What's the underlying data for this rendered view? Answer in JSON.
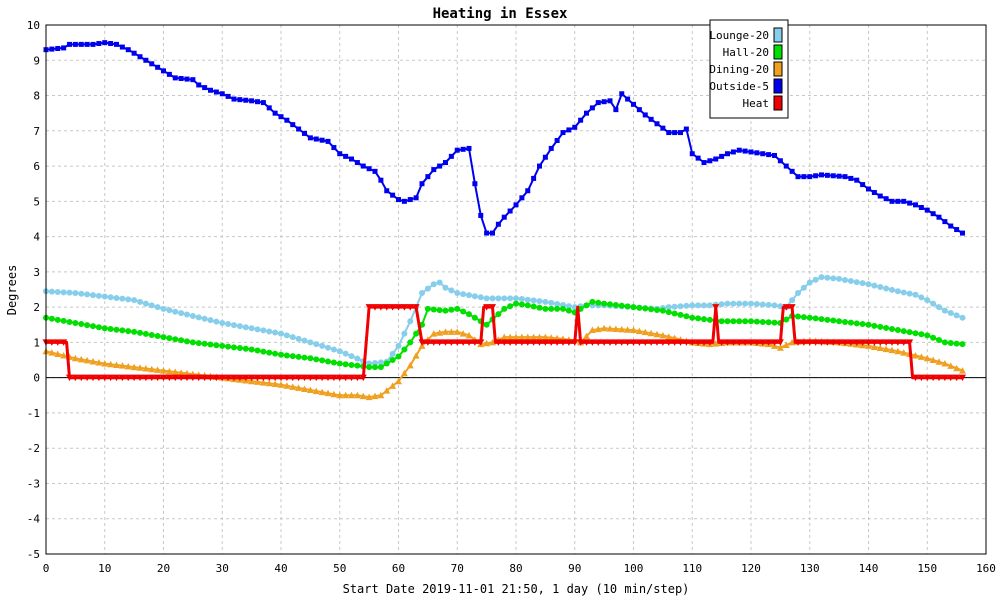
{
  "chart_data": {
    "type": "line",
    "title": "Heating in Essex",
    "xlabel": "Start Date 2019-11-01 21:50, 1 day (10 min/step)",
    "ylabel": "Degrees",
    "xlim": [
      0,
      160
    ],
    "ylim": [
      -5,
      10
    ],
    "x_ticks": [
      0,
      10,
      20,
      30,
      40,
      50,
      60,
      70,
      80,
      90,
      100,
      110,
      120,
      130,
      140,
      150,
      160
    ],
    "y_ticks": [
      -5,
      -4,
      -3,
      -2,
      -1,
      0,
      1,
      2,
      3,
      4,
      5,
      6,
      7,
      8,
      9,
      10
    ],
    "grid": true,
    "legend_position": "top-right",
    "series": [
      {
        "name": "Lounge-20",
        "color": "#87ceeb",
        "marker": "circle",
        "points": [
          [
            0,
            2.45
          ],
          [
            5,
            2.4
          ],
          [
            10,
            2.3
          ],
          [
            15,
            2.2
          ],
          [
            20,
            1.95
          ],
          [
            25,
            1.75
          ],
          [
            30,
            1.55
          ],
          [
            35,
            1.4
          ],
          [
            40,
            1.25
          ],
          [
            45,
            1.0
          ],
          [
            50,
            0.75
          ],
          [
            55,
            0.4
          ],
          [
            58,
            0.45
          ],
          [
            60,
            0.9
          ],
          [
            62,
            1.6
          ],
          [
            64,
            2.4
          ],
          [
            66,
            2.65
          ],
          [
            67,
            2.7
          ],
          [
            68,
            2.55
          ],
          [
            70,
            2.4
          ],
          [
            75,
            2.25
          ],
          [
            80,
            2.25
          ],
          [
            85,
            2.15
          ],
          [
            90,
            2.0
          ],
          [
            92,
            2.05
          ],
          [
            95,
            2.05
          ],
          [
            100,
            2.0
          ],
          [
            104,
            1.95
          ],
          [
            106,
            2.0
          ],
          [
            110,
            2.05
          ],
          [
            113,
            2.05
          ],
          [
            116,
            2.1
          ],
          [
            120,
            2.1
          ],
          [
            124,
            2.05
          ],
          [
            126,
            2.0
          ],
          [
            128,
            2.4
          ],
          [
            130,
            2.7
          ],
          [
            132,
            2.85
          ],
          [
            135,
            2.8
          ],
          [
            140,
            2.65
          ],
          [
            145,
            2.45
          ],
          [
            148,
            2.35
          ],
          [
            150,
            2.2
          ],
          [
            153,
            1.9
          ],
          [
            156,
            1.7
          ]
        ]
      },
      {
        "name": "Hall-20",
        "color": "#00e000",
        "marker": "circle",
        "points": [
          [
            0,
            1.7
          ],
          [
            5,
            1.55
          ],
          [
            10,
            1.4
          ],
          [
            15,
            1.3
          ],
          [
            20,
            1.15
          ],
          [
            25,
            1.0
          ],
          [
            30,
            0.9
          ],
          [
            35,
            0.8
          ],
          [
            40,
            0.65
          ],
          [
            45,
            0.55
          ],
          [
            50,
            0.4
          ],
          [
            55,
            0.3
          ],
          [
            57,
            0.3
          ],
          [
            60,
            0.6
          ],
          [
            62,
            1.0
          ],
          [
            64,
            1.5
          ],
          [
            65,
            1.95
          ],
          [
            68,
            1.9
          ],
          [
            70,
            1.95
          ],
          [
            72,
            1.8
          ],
          [
            75,
            1.5
          ],
          [
            78,
            1.95
          ],
          [
            80,
            2.1
          ],
          [
            82,
            2.05
          ],
          [
            85,
            1.95
          ],
          [
            88,
            1.95
          ],
          [
            90,
            1.85
          ],
          [
            93,
            2.15
          ],
          [
            95,
            2.1
          ],
          [
            100,
            2.0
          ],
          [
            105,
            1.9
          ],
          [
            110,
            1.7
          ],
          [
            115,
            1.6
          ],
          [
            120,
            1.6
          ],
          [
            125,
            1.55
          ],
          [
            127,
            1.75
          ],
          [
            130,
            1.7
          ],
          [
            135,
            1.6
          ],
          [
            140,
            1.5
          ],
          [
            145,
            1.35
          ],
          [
            150,
            1.2
          ],
          [
            153,
            1.0
          ],
          [
            156,
            0.95
          ]
        ]
      },
      {
        "name": "Dining-20",
        "color": "#f0a020",
        "marker": "triangle",
        "points": [
          [
            0,
            0.75
          ],
          [
            5,
            0.55
          ],
          [
            10,
            0.4
          ],
          [
            15,
            0.3
          ],
          [
            20,
            0.2
          ],
          [
            25,
            0.1
          ],
          [
            30,
            0.0
          ],
          [
            35,
            -0.1
          ],
          [
            40,
            -0.2
          ],
          [
            45,
            -0.35
          ],
          [
            50,
            -0.5
          ],
          [
            53,
            -0.5
          ],
          [
            55,
            -0.55
          ],
          [
            57,
            -0.5
          ],
          [
            60,
            -0.1
          ],
          [
            62,
            0.35
          ],
          [
            64,
            0.9
          ],
          [
            66,
            1.25
          ],
          [
            68,
            1.3
          ],
          [
            70,
            1.3
          ],
          [
            72,
            1.2
          ],
          [
            74,
            0.95
          ],
          [
            76,
            1.0
          ],
          [
            78,
            1.15
          ],
          [
            80,
            1.15
          ],
          [
            85,
            1.15
          ],
          [
            88,
            1.1
          ],
          [
            90,
            1.05
          ],
          [
            91,
            1.0
          ],
          [
            93,
            1.35
          ],
          [
            95,
            1.4
          ],
          [
            100,
            1.35
          ],
          [
            105,
            1.2
          ],
          [
            110,
            1.0
          ],
          [
            113,
            0.95
          ],
          [
            116,
            1.0
          ],
          [
            120,
            1.0
          ],
          [
            123,
            0.95
          ],
          [
            125,
            0.85
          ],
          [
            127,
            1.0
          ],
          [
            130,
            1.05
          ],
          [
            135,
            1.0
          ],
          [
            140,
            0.9
          ],
          [
            145,
            0.75
          ],
          [
            150,
            0.55
          ],
          [
            153,
            0.4
          ],
          [
            156,
            0.2
          ]
        ]
      },
      {
        "name": "Outside-5",
        "color": "#0000f0",
        "marker": "square",
        "points": [
          [
            0,
            9.3
          ],
          [
            3,
            9.35
          ],
          [
            4,
            9.45
          ],
          [
            8,
            9.45
          ],
          [
            10,
            9.5
          ],
          [
            12,
            9.45
          ],
          [
            14,
            9.3
          ],
          [
            16,
            9.1
          ],
          [
            18,
            8.9
          ],
          [
            20,
            8.7
          ],
          [
            22,
            8.5
          ],
          [
            25,
            8.45
          ],
          [
            26,
            8.3
          ],
          [
            28,
            8.15
          ],
          [
            30,
            8.05
          ],
          [
            32,
            7.9
          ],
          [
            35,
            7.85
          ],
          [
            37,
            7.8
          ],
          [
            39,
            7.5
          ],
          [
            41,
            7.3
          ],
          [
            43,
            7.05
          ],
          [
            45,
            6.8
          ],
          [
            48,
            6.7
          ],
          [
            50,
            6.35
          ],
          [
            52,
            6.2
          ],
          [
            54,
            6.0
          ],
          [
            56,
            5.85
          ],
          [
            57,
            5.6
          ],
          [
            58,
            5.3
          ],
          [
            60,
            5.05
          ],
          [
            61,
            5.0
          ],
          [
            63,
            5.1
          ],
          [
            64,
            5.5
          ],
          [
            66,
            5.9
          ],
          [
            68,
            6.1
          ],
          [
            70,
            6.45
          ],
          [
            72,
            6.5
          ],
          [
            73,
            5.5
          ],
          [
            74,
            4.6
          ],
          [
            75,
            4.1
          ],
          [
            76,
            4.1
          ],
          [
            77,
            4.35
          ],
          [
            78,
            4.55
          ],
          [
            80,
            4.9
          ],
          [
            82,
            5.3
          ],
          [
            84,
            6.0
          ],
          [
            86,
            6.5
          ],
          [
            88,
            6.95
          ],
          [
            90,
            7.1
          ],
          [
            92,
            7.5
          ],
          [
            94,
            7.8
          ],
          [
            96,
            7.85
          ],
          [
            97,
            7.6
          ],
          [
            98,
            8.05
          ],
          [
            100,
            7.75
          ],
          [
            102,
            7.45
          ],
          [
            104,
            7.2
          ],
          [
            106,
            6.95
          ],
          [
            108,
            6.95
          ],
          [
            109,
            7.05
          ],
          [
            110,
            6.35
          ],
          [
            112,
            6.1
          ],
          [
            114,
            6.2
          ],
          [
            116,
            6.35
          ],
          [
            118,
            6.45
          ],
          [
            120,
            6.4
          ],
          [
            122,
            6.35
          ],
          [
            124,
            6.3
          ],
          [
            126,
            6.0
          ],
          [
            128,
            5.7
          ],
          [
            130,
            5.7
          ],
          [
            132,
            5.75
          ],
          [
            136,
            5.7
          ],
          [
            138,
            5.6
          ],
          [
            140,
            5.35
          ],
          [
            142,
            5.15
          ],
          [
            144,
            5.0
          ],
          [
            146,
            5.0
          ],
          [
            148,
            4.9
          ],
          [
            150,
            4.75
          ],
          [
            152,
            4.55
          ],
          [
            154,
            4.3
          ],
          [
            156,
            4.1
          ]
        ]
      },
      {
        "name": "Heat",
        "color": "#f00000",
        "marker": "triangle-down",
        "points": [
          [
            0,
            1
          ],
          [
            3.5,
            1
          ],
          [
            4,
            0
          ],
          [
            54,
            0
          ],
          [
            55,
            2
          ],
          [
            63,
            2
          ],
          [
            64,
            1
          ],
          [
            74,
            1
          ],
          [
            74.5,
            2
          ],
          [
            76,
            2
          ],
          [
            76.5,
            1
          ],
          [
            90,
            1
          ],
          [
            90.5,
            2
          ],
          [
            91,
            1
          ],
          [
            113.5,
            1
          ],
          [
            114,
            2
          ],
          [
            114.5,
            1
          ],
          [
            125,
            1
          ],
          [
            125.5,
            2
          ],
          [
            127,
            2
          ],
          [
            127.5,
            1
          ],
          [
            147,
            1
          ],
          [
            147.5,
            0
          ],
          [
            156,
            0
          ]
        ]
      }
    ]
  }
}
